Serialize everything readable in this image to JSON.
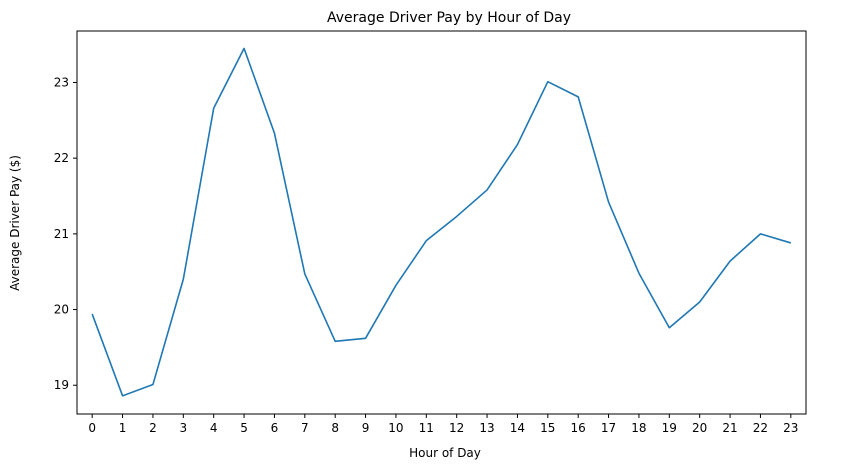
{
  "chart_data": {
    "type": "line",
    "title": "Average Driver Pay by Hour of Day",
    "xlabel": "Hour of Day",
    "ylabel": "Average Driver Pay ($)",
    "x": [
      0,
      1,
      2,
      3,
      4,
      5,
      6,
      7,
      8,
      9,
      10,
      11,
      12,
      13,
      14,
      15,
      16,
      17,
      18,
      19,
      20,
      21,
      22,
      23
    ],
    "series": [
      {
        "name": "",
        "color": "#1f77b4",
        "values": [
          19.94,
          18.86,
          19.01,
          20.4,
          22.66,
          23.45,
          22.33,
          20.47,
          19.58,
          19.62,
          20.32,
          20.91,
          21.23,
          21.58,
          22.18,
          23.01,
          22.81,
          21.42,
          20.48,
          19.76,
          20.1,
          20.64,
          21.0,
          20.88
        ]
      }
    ],
    "xlim": [
      -0.5,
      23.5
    ],
    "ylim": [
      18.62,
      23.68
    ],
    "yticks": [
      19,
      20,
      21,
      22,
      23
    ],
    "xticks": [
      0,
      1,
      2,
      3,
      4,
      5,
      6,
      7,
      8,
      9,
      10,
      11,
      12,
      13,
      14,
      15,
      16,
      17,
      18,
      19,
      20,
      21,
      22,
      23
    ],
    "grid": false,
    "legend": "none"
  }
}
